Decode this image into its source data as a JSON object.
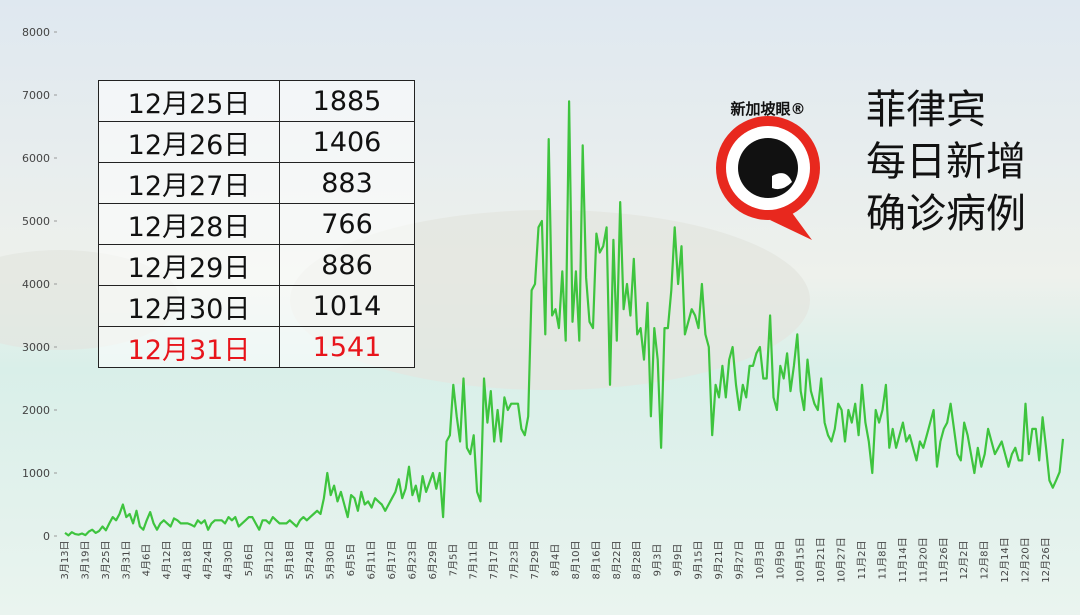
{
  "chart_data": {
    "type": "line",
    "color": "#3ec43e",
    "title": "菲律宾\n每日新增\n确诊病例",
    "logo": "新加坡眼®",
    "ylim": [
      0,
      8000
    ],
    "yticks": [
      0,
      1000,
      2000,
      3000,
      4000,
      5000,
      6000,
      7000,
      8000
    ],
    "categories": [
      "3月13日",
      null,
      null,
      null,
      null,
      null,
      "3月19日",
      null,
      null,
      null,
      null,
      null,
      "3月25日",
      null,
      null,
      null,
      null,
      null,
      "3月31日",
      null,
      null,
      null,
      null,
      null,
      "4月6日",
      null,
      null,
      null,
      null,
      null,
      "4月12日",
      null,
      null,
      null,
      null,
      null,
      "4月18日",
      null,
      null,
      null,
      null,
      null,
      "4月24日",
      null,
      null,
      null,
      null,
      null,
      "4月30日",
      null,
      null,
      null,
      null,
      null,
      "5月6日",
      null,
      null,
      null,
      null,
      null,
      "5月12日",
      null,
      null,
      null,
      null,
      null,
      "5月18日",
      null,
      null,
      null,
      null,
      null,
      "5月24日",
      null,
      null,
      null,
      null,
      null,
      "5月30日",
      null,
      null,
      null,
      null,
      null,
      "6月5日",
      null,
      null,
      null,
      null,
      null,
      "6月11日",
      null,
      null,
      null,
      null,
      null,
      "6月17日",
      null,
      null,
      null,
      null,
      null,
      "6月23日",
      null,
      null,
      null,
      null,
      null,
      "6月29日",
      null,
      null,
      null,
      null,
      null,
      "7月5日",
      null,
      null,
      null,
      null,
      null,
      "7月11日",
      null,
      null,
      null,
      null,
      null,
      "7月17日",
      null,
      null,
      null,
      null,
      null,
      "7月23日",
      null,
      null,
      null,
      null,
      null,
      "7月29日",
      null,
      null,
      null,
      null,
      null,
      "8月4日",
      null,
      null,
      null,
      null,
      null,
      "8月10日",
      null,
      null,
      null,
      null,
      null,
      "8月16日",
      null,
      null,
      null,
      null,
      null,
      "8月22日",
      null,
      null,
      null,
      null,
      null,
      "8月28日",
      null,
      null,
      null,
      null,
      null,
      "9月3日",
      null,
      null,
      null,
      null,
      null,
      "9月9日",
      null,
      null,
      null,
      null,
      null,
      "9月15日",
      null,
      null,
      null,
      null,
      null,
      "9月21日",
      null,
      null,
      null,
      null,
      null,
      "9月27日",
      null,
      null,
      null,
      null,
      null,
      "10月3日",
      null,
      null,
      null,
      null,
      null,
      "10月9日",
      null,
      null,
      null,
      null,
      null,
      "10月15日",
      null,
      null,
      null,
      null,
      null,
      "10月21日",
      null,
      null,
      null,
      null,
      null,
      "10月27日",
      null,
      null,
      null,
      null,
      null,
      "11月2日",
      null,
      null,
      null,
      null,
      null,
      "11月8日",
      null,
      null,
      null,
      null,
      null,
      "11月14日",
      null,
      null,
      null,
      null,
      null,
      "11月20日",
      null,
      null,
      null,
      null,
      null,
      "11月26日",
      null,
      null,
      null,
      null,
      null,
      "12月2日",
      null,
      null,
      null,
      null,
      null,
      "12月8日",
      null,
      null,
      null,
      null,
      null,
      "12月14日",
      null,
      null,
      null,
      null,
      null,
      "12月20日",
      null,
      null,
      null,
      null,
      null,
      "12月26日",
      null,
      null,
      null,
      null,
      null
    ],
    "values": [
      50,
      10,
      60,
      30,
      20,
      40,
      15,
      70,
      100,
      50,
      80,
      150,
      90,
      200,
      300,
      250,
      350,
      500,
      300,
      350,
      200,
      400,
      150,
      100,
      250,
      380,
      200,
      100,
      200,
      250,
      200,
      150,
      280,
      250,
      200,
      200,
      200,
      180,
      150,
      250,
      200,
      250,
      100,
      200,
      250,
      250,
      250,
      200,
      300,
      250,
      300,
      150,
      200,
      250,
      300,
      300,
      200,
      100,
      250,
      250,
      200,
      300,
      250,
      200,
      200,
      200,
      250,
      200,
      150,
      250,
      300,
      250,
      300,
      350,
      400,
      350,
      600,
      1000,
      650,
      800,
      550,
      700,
      500,
      300,
      650,
      600,
      400,
      700,
      500,
      550,
      450,
      600,
      550,
      500,
      400,
      500,
      600,
      700,
      900,
      600,
      750,
      1100,
      650,
      800,
      550,
      950,
      700,
      850,
      1000,
      750,
      1000,
      300,
      1500,
      1600,
      2400,
      1900,
      1500,
      2500,
      1400,
      1300,
      1600,
      700,
      550,
      2500,
      1800,
      2300,
      1500,
      2000,
      1500,
      2200,
      2000,
      2100,
      2100,
      2100,
      1700,
      1600,
      1900,
      3900,
      4000,
      4900,
      5000,
      3200,
      6300,
      3500,
      3600,
      3300,
      4200,
      3100,
      6900,
      3400,
      4200,
      3100,
      6200,
      4100,
      3400,
      3300,
      4800,
      4500,
      4600,
      4900,
      2400,
      4700,
      3100,
      5300,
      3600,
      4000,
      3500,
      4400,
      3200,
      3300,
      2800,
      3700,
      1900,
      3300,
      2800,
      1400,
      3300,
      3300,
      3900,
      4900,
      4000,
      4600,
      3200,
      3400,
      3600,
      3500,
      3300,
      4000,
      3200,
      3000,
      1600,
      2400,
      2200,
      2700,
      2200,
      2800,
      3000,
      2400,
      2000,
      2400,
      2200,
      2700,
      2700,
      2900,
      3000,
      2500,
      2500,
      3500,
      2200,
      2000,
      2700,
      2500,
      2900,
      2300,
      2700,
      3200,
      2300,
      2000,
      2800,
      2300,
      2100,
      2000,
      2500,
      1800,
      1600,
      1500,
      1700,
      2100,
      2000,
      1500,
      2000,
      1800,
      2100,
      1600,
      2400,
      1800,
      1500,
      1000,
      2000,
      1800,
      2000,
      2400,
      1400,
      1700,
      1400,
      1600,
      1800,
      1500,
      1600,
      1400,
      1200,
      1500,
      1400,
      1600,
      1800,
      2000,
      1100,
      1500,
      1700,
      1800,
      2100,
      1700,
      1300,
      1200,
      1800,
      1600,
      1300,
      1000,
      1400,
      1100,
      1300,
      1700,
      1500,
      1300,
      1400,
      1500,
      1300,
      1100,
      1300,
      1400,
      1200,
      1200,
      2100,
      1300,
      1700,
      1700,
      1200,
      1885,
      1406,
      883,
      766,
      886,
      1014,
      1541
    ]
  },
  "table": {
    "rows": [
      [
        "12月25日",
        "1885"
      ],
      [
        "12月26日",
        "1406"
      ],
      [
        "12月27日",
        "883"
      ],
      [
        "12月28日",
        "766"
      ],
      [
        "12月29日",
        "886"
      ],
      [
        "12月30日",
        "1014"
      ],
      [
        "12月31日",
        "1541"
      ]
    ]
  }
}
